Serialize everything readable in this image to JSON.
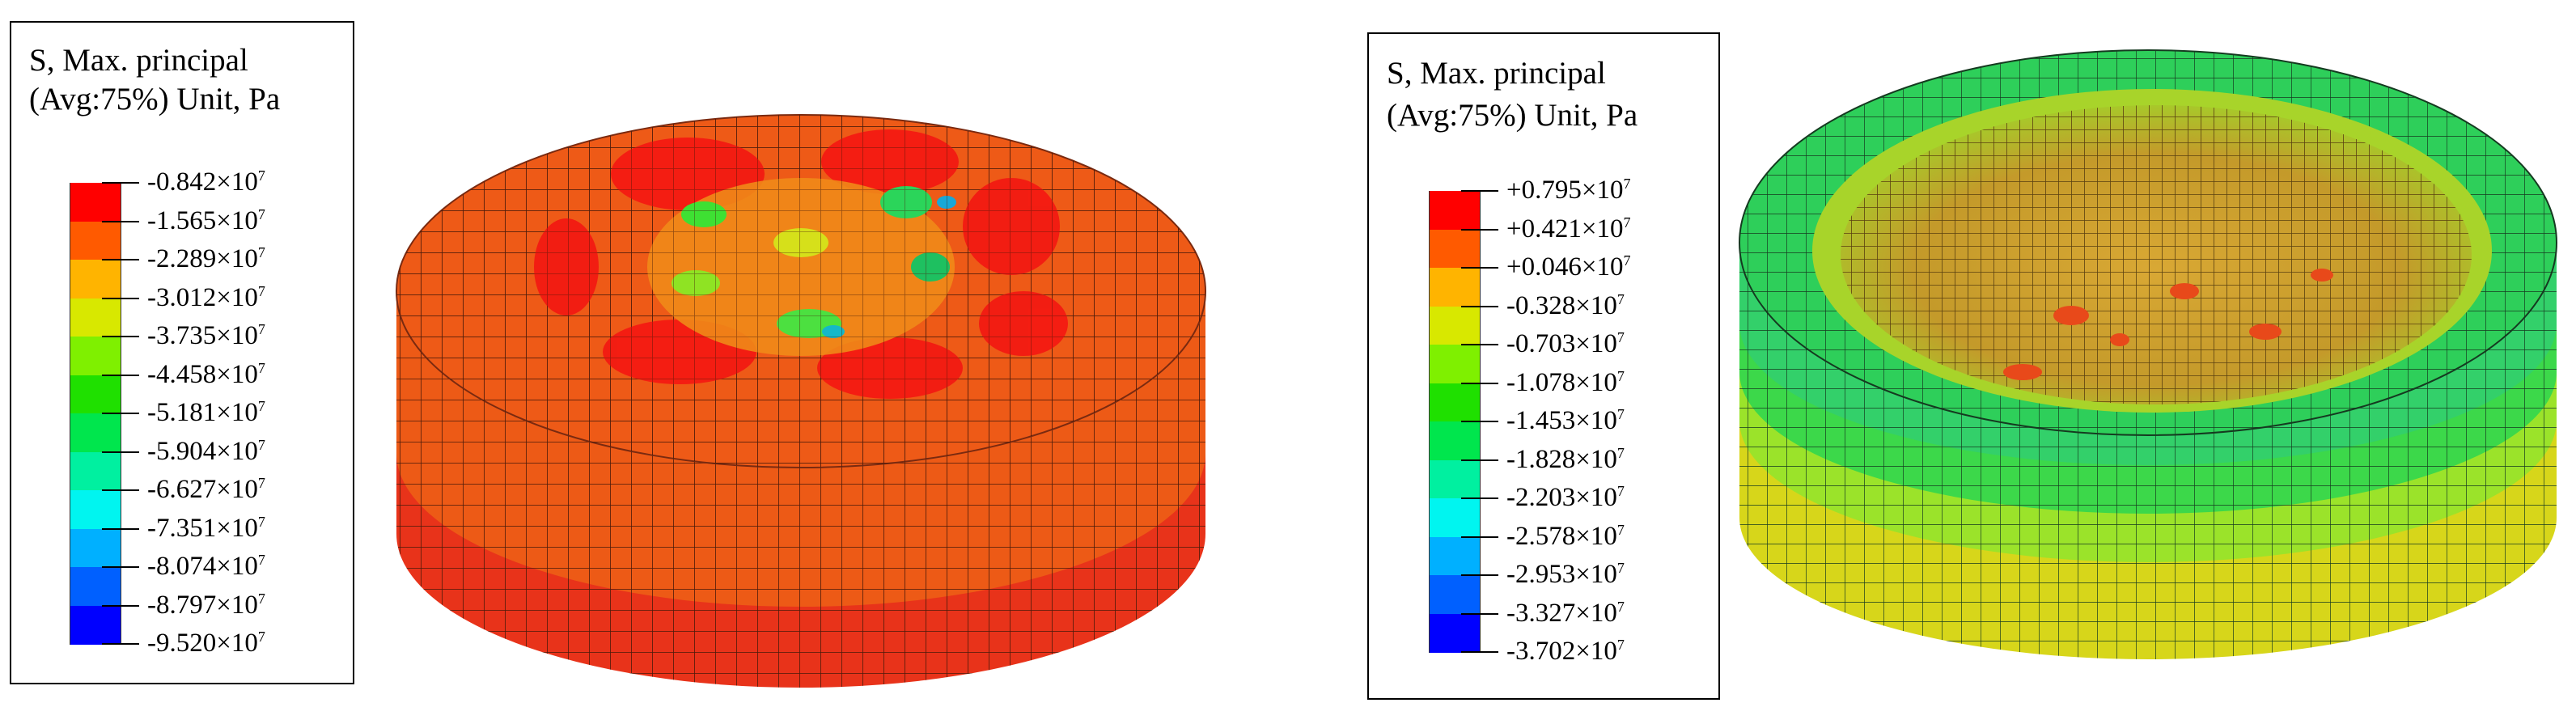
{
  "left_panel": {
    "legend": {
      "title_line1": "S, Max. principal",
      "title_line2": "(Avg:75%) Unit, Pa",
      "colors": [
        "#ff0000",
        "#ff5a00",
        "#ffb400",
        "#d8e800",
        "#7ff000",
        "#1fe000",
        "#00e64d",
        "#00f0a0",
        "#00f5f0",
        "#00b0ff",
        "#0060ff",
        "#0000ff"
      ],
      "labels": [
        {
          "m": "-0.842",
          "e": "7"
        },
        {
          "m": "-1.565",
          "e": "7"
        },
        {
          "m": "-2.289",
          "e": "7"
        },
        {
          "m": "-3.012",
          "e": "7"
        },
        {
          "m": "-3.735",
          "e": "7"
        },
        {
          "m": "-4.458",
          "e": "7"
        },
        {
          "m": "-5.181",
          "e": "7"
        },
        {
          "m": "-5.904",
          "e": "7"
        },
        {
          "m": "-6.627",
          "e": "7"
        },
        {
          "m": "-7.351",
          "e": "7"
        },
        {
          "m": "-8.074",
          "e": "7"
        },
        {
          "m": "-8.797",
          "e": "7"
        },
        {
          "m": "-9.520",
          "e": "7"
        }
      ]
    },
    "model": {
      "top_color": "#ee5a17",
      "side_upper_color": "#ed5a16",
      "side_lower_color": "#e8331a",
      "hotspot_color": "#f31a12",
      "mesh_color": "#4a1a0a"
    }
  },
  "right_panel": {
    "legend": {
      "title_line1": "S, Max. principal",
      "title_line2": "(Avg:75%) Unit, Pa",
      "colors": [
        "#ff0000",
        "#ff5a00",
        "#ffb400",
        "#d8e800",
        "#7ff000",
        "#1fe000",
        "#00e64d",
        "#00f0a0",
        "#00f5f0",
        "#00b0ff",
        "#0060ff",
        "#0000ff"
      ],
      "labels": [
        {
          "m": "+0.795",
          "e": "7"
        },
        {
          "m": "+0.421",
          "e": "7"
        },
        {
          "m": "+0.046",
          "e": "7"
        },
        {
          "m": "-0.328",
          "e": "7"
        },
        {
          "m": "-0.703",
          "e": "7"
        },
        {
          "m": "-1.078",
          "e": "7"
        },
        {
          "m": "-1.453",
          "e": "7"
        },
        {
          "m": "-1.828",
          "e": "7"
        },
        {
          "m": "-2.203",
          "e": "7"
        },
        {
          "m": "-2.578",
          "e": "7"
        },
        {
          "m": "-2.953",
          "e": "7"
        },
        {
          "m": "-3.327",
          "e": "7"
        },
        {
          "m": "-3.702",
          "e": "7"
        }
      ]
    },
    "model": {
      "rim_color": "#2ecf5a",
      "side_band_colors": [
        "#33d06a",
        "#3cd84a",
        "#9be32a",
        "#d7d61a"
      ],
      "crater_color": "#c9a42a",
      "crater_dark": "#5a4010",
      "hotspot_color": "#e8491a",
      "mesh_color": "#153a20"
    }
  }
}
